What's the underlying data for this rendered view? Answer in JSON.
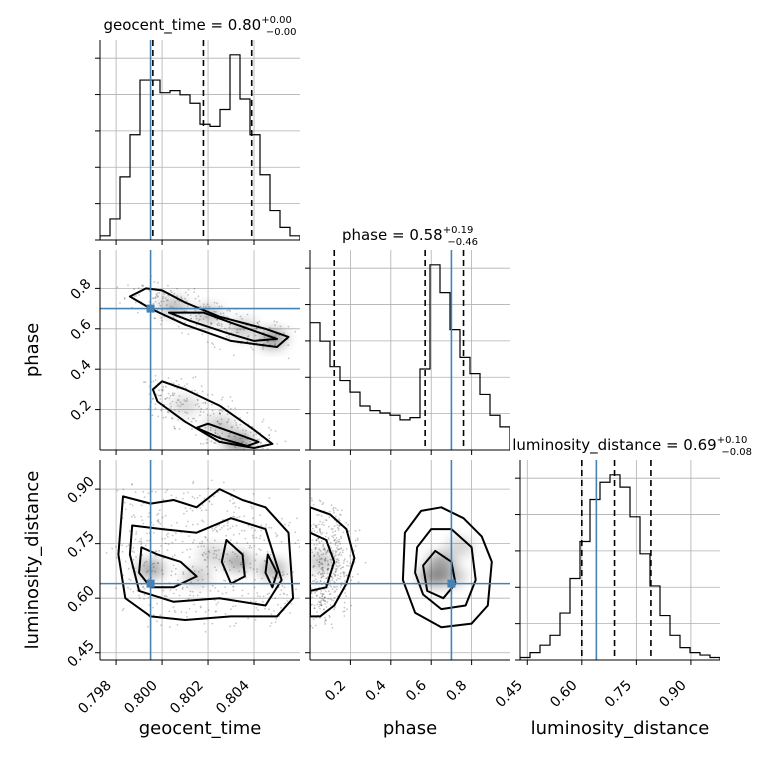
{
  "chart_data": {
    "type": "corner",
    "truth_color": "#4682b4",
    "parameters": [
      {
        "name": "geocent_time",
        "label": "geocent_time",
        "title_name": "geocent_time = 0.80",
        "title_plus": "+0.00",
        "title_minus": "−0.00",
        "range": [
          0.7973,
          0.806
        ],
        "ticks": [
          0.798,
          0.8,
          0.802,
          0.804
        ],
        "tick_labels": [
          "0.798",
          "0.800",
          "0.802",
          "0.804"
        ],
        "truth": 0.7995,
        "quantiles": [
          0.7996,
          0.8018,
          0.8039
        ],
        "hist_edges_start": 0.7973,
        "hist_bin_width": 0.000435,
        "hist_values": [
          0.02,
          0.1,
          0.3,
          0.5,
          0.76,
          0.76,
          0.7,
          0.71,
          0.69,
          0.65,
          0.55,
          0.54,
          0.62,
          0.88,
          0.67,
          0.5,
          0.31,
          0.14,
          0.06,
          0.02
        ]
      },
      {
        "name": "phase",
        "label": "phase",
        "title_name": "phase = 0.58",
        "title_plus": "+0.19",
        "title_minus": "−0.46",
        "range": [
          0.0,
          0.99
        ],
        "ticks": [
          0.2,
          0.4,
          0.6,
          0.8
        ],
        "tick_labels": [
          "0.2",
          "0.4",
          "0.6",
          "0.8"
        ],
        "truth": 0.7,
        "quantiles": [
          0.12,
          0.57,
          0.76
        ],
        "hist_edges_start": 0.0,
        "hist_bin_width": 0.0495,
        "hist_values": [
          0.55,
          0.47,
          0.36,
          0.3,
          0.25,
          0.19,
          0.17,
          0.16,
          0.15,
          0.13,
          0.14,
          0.35,
          0.8,
          0.68,
          0.52,
          0.4,
          0.33,
          0.24,
          0.15,
          0.1
        ]
      },
      {
        "name": "luminosity_distance",
        "label": "luminosity_distance",
        "title_name": "luminosity_distance = 0.69",
        "title_plus": "+0.10",
        "title_minus": "−0.08",
        "range": [
          0.43,
          0.98
        ],
        "ticks": [
          0.45,
          0.6,
          0.75,
          0.9
        ],
        "tick_labels": [
          "0.45",
          "0.60",
          "0.75",
          "0.90"
        ],
        "truth": 0.64,
        "quantiles": [
          0.6,
          0.69,
          0.79
        ],
        "hist_edges_start": 0.43,
        "hist_bin_width": 0.0275,
        "hist_values": [
          0.01,
          0.03,
          0.06,
          0.1,
          0.19,
          0.33,
          0.48,
          0.65,
          0.72,
          0.75,
          0.7,
          0.58,
          0.43,
          0.3,
          0.18,
          0.1,
          0.05,
          0.03,
          0.02,
          0.01
        ]
      }
    ],
    "pair_panels": [
      {
        "x": "geocent_time",
        "y": "phase",
        "truth_point": [
          0.7995,
          0.7
        ],
        "contours": [
          [
            [
              0.7993,
              0.8
            ],
            [
              0.8,
              0.79
            ],
            [
              0.801,
              0.73
            ],
            [
              0.8025,
              0.66
            ],
            [
              0.8045,
              0.6
            ],
            [
              0.8055,
              0.56
            ],
            [
              0.805,
              0.51
            ],
            [
              0.803,
              0.54
            ],
            [
              0.801,
              0.62
            ],
            [
              0.7995,
              0.7
            ],
            [
              0.7986,
              0.76
            ]
          ],
          [
            [
              0.8,
              0.34
            ],
            [
              0.801,
              0.3
            ],
            [
              0.8025,
              0.22
            ],
            [
              0.804,
              0.1
            ],
            [
              0.8048,
              0.03
            ],
            [
              0.804,
              0.01
            ],
            [
              0.8025,
              0.04
            ],
            [
              0.801,
              0.14
            ],
            [
              0.7998,
              0.24
            ],
            [
              0.7996,
              0.3
            ]
          ],
          [
            [
              0.8003,
              0.68
            ],
            [
              0.8018,
              0.68
            ],
            [
              0.803,
              0.63
            ],
            [
              0.804,
              0.59
            ],
            [
              0.805,
              0.55
            ],
            [
              0.804,
              0.54
            ],
            [
              0.8028,
              0.58
            ],
            [
              0.8012,
              0.64
            ]
          ],
          [
            [
              0.802,
              0.13
            ],
            [
              0.8035,
              0.07
            ],
            [
              0.8042,
              0.04
            ],
            [
              0.8037,
              0.02
            ],
            [
              0.8025,
              0.06
            ],
            [
              0.8015,
              0.11
            ]
          ]
        ],
        "density_blobs": [
          [
            0.8048,
            0.55,
            0.9
          ],
          [
            0.8033,
            0.04,
            1.0
          ],
          [
            0.8005,
            0.71,
            0.6
          ],
          [
            0.802,
            0.67,
            0.5
          ],
          [
            0.8035,
            0.6,
            0.5
          ],
          [
            0.801,
            0.22,
            0.35
          ],
          [
            0.8025,
            0.12,
            0.5
          ]
        ]
      },
      {
        "x": "geocent_time",
        "y": "luminosity_distance",
        "truth_point": [
          0.7995,
          0.64
        ],
        "contours": [
          [
            [
              0.7983,
              0.88
            ],
            [
              0.7995,
              0.86
            ],
            [
              0.8005,
              0.87
            ],
            [
              0.8015,
              0.85
            ],
            [
              0.8025,
              0.9
            ],
            [
              0.8035,
              0.87
            ],
            [
              0.8045,
              0.85
            ],
            [
              0.8055,
              0.78
            ],
            [
              0.8057,
              0.6
            ],
            [
              0.805,
              0.55
            ],
            [
              0.803,
              0.55
            ],
            [
              0.801,
              0.54
            ],
            [
              0.7995,
              0.55
            ],
            [
              0.7984,
              0.6
            ],
            [
              0.7981,
              0.72
            ]
          ],
          [
            [
              0.7987,
              0.8
            ],
            [
              0.8,
              0.79
            ],
            [
              0.8015,
              0.78
            ],
            [
              0.803,
              0.82
            ],
            [
              0.8045,
              0.79
            ],
            [
              0.8052,
              0.65
            ],
            [
              0.8045,
              0.58
            ],
            [
              0.8025,
              0.6
            ],
            [
              0.8005,
              0.59
            ],
            [
              0.799,
              0.62
            ],
            [
              0.7986,
              0.72
            ]
          ],
          [
            [
              0.7991,
              0.74
            ],
            [
              0.7998,
              0.72
            ],
            [
              0.8008,
              0.7
            ],
            [
              0.8015,
              0.66
            ],
            [
              0.8005,
              0.63
            ],
            [
              0.7995,
              0.63
            ],
            [
              0.799,
              0.67
            ]
          ],
          [
            [
              0.8028,
              0.76
            ],
            [
              0.8035,
              0.72
            ],
            [
              0.8036,
              0.66
            ],
            [
              0.803,
              0.64
            ],
            [
              0.8026,
              0.7
            ]
          ],
          [
            [
              0.8046,
              0.72
            ],
            [
              0.805,
              0.67
            ],
            [
              0.8048,
              0.63
            ],
            [
              0.8045,
              0.67
            ]
          ]
        ],
        "density_blobs": [
          [
            0.7995,
            0.68,
            0.8
          ],
          [
            0.8033,
            0.7,
            0.8
          ],
          [
            0.8048,
            0.68,
            0.7
          ],
          [
            0.8015,
            0.66,
            0.5
          ],
          [
            0.8022,
            0.72,
            0.4
          ]
        ]
      },
      {
        "x": "phase",
        "y": "luminosity_distance",
        "truth_point": [
          0.7,
          0.64
        ],
        "contours": [
          [
            [
              0.0,
              0.85
            ],
            [
              0.1,
              0.83
            ],
            [
              0.18,
              0.79
            ],
            [
              0.22,
              0.71
            ],
            [
              0.18,
              0.64
            ],
            [
              0.12,
              0.58
            ],
            [
              0.05,
              0.55
            ],
            [
              0.0,
              0.55
            ]
          ],
          [
            [
              0.0,
              0.78
            ],
            [
              0.08,
              0.76
            ],
            [
              0.12,
              0.7
            ],
            [
              0.08,
              0.63
            ],
            [
              0.0,
              0.62
            ]
          ],
          [
            [
              0.47,
              0.78
            ],
            [
              0.55,
              0.84
            ],
            [
              0.65,
              0.85
            ],
            [
              0.76,
              0.82
            ],
            [
              0.85,
              0.77
            ],
            [
              0.9,
              0.7
            ],
            [
              0.88,
              0.58
            ],
            [
              0.8,
              0.53
            ],
            [
              0.65,
              0.52
            ],
            [
              0.52,
              0.56
            ],
            [
              0.46,
              0.65
            ]
          ],
          [
            [
              0.53,
              0.74
            ],
            [
              0.6,
              0.79
            ],
            [
              0.7,
              0.79
            ],
            [
              0.8,
              0.74
            ],
            [
              0.82,
              0.65
            ],
            [
              0.77,
              0.58
            ],
            [
              0.65,
              0.57
            ],
            [
              0.56,
              0.61
            ],
            [
              0.52,
              0.67
            ]
          ],
          [
            [
              0.56,
              0.69
            ],
            [
              0.62,
              0.73
            ],
            [
              0.7,
              0.7
            ],
            [
              0.72,
              0.64
            ],
            [
              0.66,
              0.6
            ],
            [
              0.58,
              0.62
            ]
          ]
        ],
        "density_blobs": [
          [
            0.61,
            0.66,
            1.0
          ],
          [
            0.65,
            0.7,
            0.8
          ],
          [
            0.7,
            0.66,
            0.6
          ],
          [
            0.05,
            0.7,
            0.5
          ],
          [
            0.74,
            0.74,
            0.4
          ]
        ]
      }
    ]
  }
}
